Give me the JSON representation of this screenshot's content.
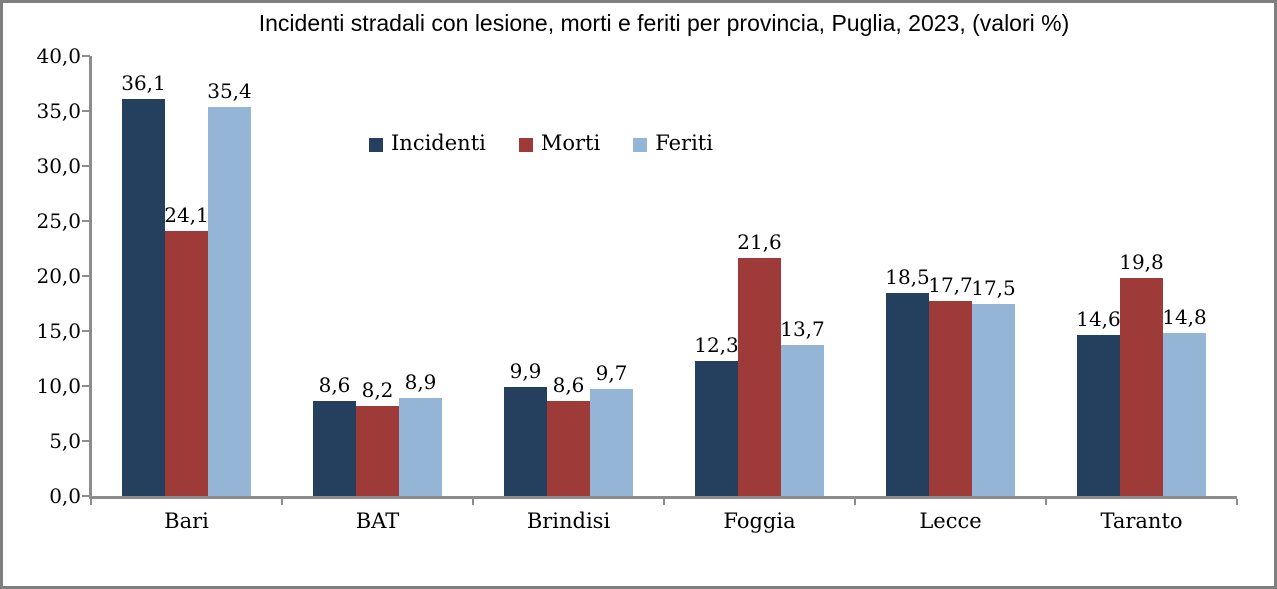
{
  "frame": {
    "border_color": "#7f7f7f",
    "background": "#ffffff"
  },
  "chart_data": {
    "type": "bar",
    "title": "Incidenti stradali con lesione, morti e feriti per provincia, Puglia, 2023, (valori %)",
    "categories": [
      "Bari",
      "BAT",
      "Brindisi",
      "Foggia",
      "Lecce",
      "Taranto"
    ],
    "series": [
      {
        "name": "Incidenti",
        "color": "#24405E",
        "values": [
          36.1,
          8.6,
          9.9,
          12.3,
          18.5,
          14.6
        ]
      },
      {
        "name": "Morti",
        "color": "#9E3A37",
        "values": [
          24.1,
          8.2,
          8.6,
          21.6,
          17.7,
          19.8
        ]
      },
      {
        "name": "Feriti",
        "color": "#95B5D7",
        "values": [
          35.4,
          8.9,
          9.7,
          13.7,
          17.5,
          14.8
        ]
      }
    ],
    "y_axis": {
      "min": 0,
      "max": 40,
      "step": 5,
      "tick_labels": [
        "0,0",
        "5,0",
        "10,0",
        "15,0",
        "20,0",
        "25,0",
        "30,0",
        "35,0",
        "40,0"
      ],
      "decimal_separator": ","
    },
    "data_labels": [
      "36,1",
      "24,1",
      "35,4",
      "8,6",
      "8,2",
      "8,9",
      "9,9",
      "8,6",
      "9,7",
      "12,3",
      "21,6",
      "13,7",
      "18,5",
      "17,7",
      "17,5",
      "14,6",
      "19,8",
      "14,8"
    ],
    "axis_color": "#8c8c8c",
    "grid": false,
    "legend_position": "inside-top-left-of-center"
  }
}
